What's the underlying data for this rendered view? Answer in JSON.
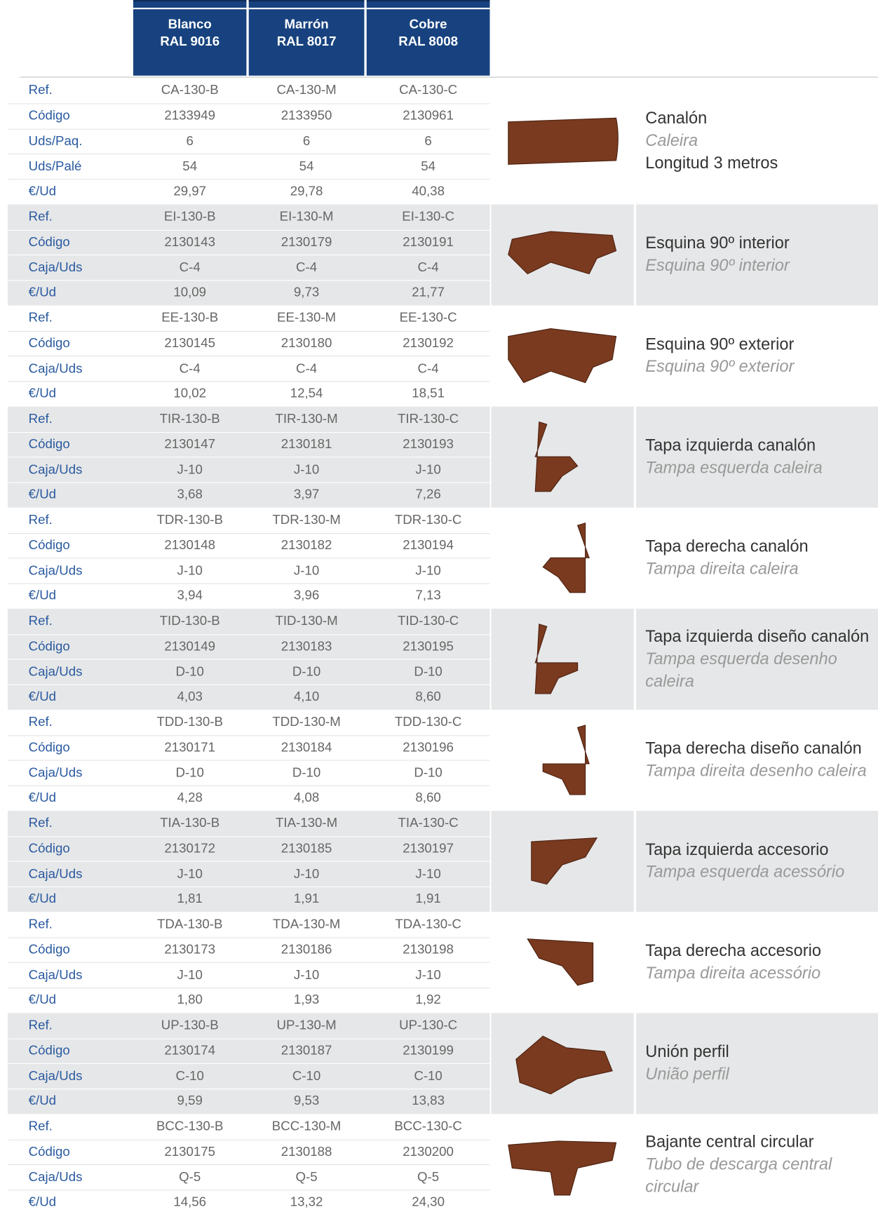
{
  "header": {
    "columns": [
      {
        "name": "Blanco",
        "ral": "RAL 9016"
      },
      {
        "name": "Marrón",
        "ral": "RAL 8017"
      },
      {
        "name": "Cobre",
        "ral": "RAL 8008"
      }
    ]
  },
  "groups": [
    {
      "title": "Canalón",
      "subtitle": "Caleira",
      "note": "Longitud 3 metros",
      "rows": [
        {
          "label": "Ref.",
          "values": [
            "CA-130-B",
            "CA-130-M",
            "CA-130-C"
          ]
        },
        {
          "label": "Código",
          "values": [
            "2133949",
            "2133950",
            "2130961"
          ]
        },
        {
          "label": "Uds/Paq.",
          "values": [
            "6",
            "6",
            "6"
          ]
        },
        {
          "label": "Uds/Palé",
          "values": [
            "54",
            "54",
            "54"
          ]
        },
        {
          "label": "€/Ud",
          "values": [
            "29,97",
            "29,78",
            "40,38"
          ]
        }
      ]
    },
    {
      "title": "Esquina 90º interior",
      "subtitle": "Esquina 90º interior",
      "rows": [
        {
          "label": "Ref.",
          "values": [
            "EI-130-B",
            "EI-130-M",
            "EI-130-C"
          ]
        },
        {
          "label": "Código",
          "values": [
            "2130143",
            "2130179",
            "2130191"
          ]
        },
        {
          "label": "Caja/Uds",
          "values": [
            "C-4",
            "C-4",
            "C-4"
          ]
        },
        {
          "label": "€/Ud",
          "values": [
            "10,09",
            "9,73",
            "21,77"
          ]
        }
      ]
    },
    {
      "title": "Esquina 90º exterior",
      "subtitle": "Esquina 90º exterior",
      "rows": [
        {
          "label": "Ref.",
          "values": [
            "EE-130-B",
            "EE-130-M",
            "EE-130-C"
          ]
        },
        {
          "label": "Código",
          "values": [
            "2130145",
            "2130180",
            "2130192"
          ]
        },
        {
          "label": "Caja/Uds",
          "values": [
            "C-4",
            "C-4",
            "C-4"
          ]
        },
        {
          "label": "€/Ud",
          "values": [
            "10,02",
            "12,54",
            "18,51"
          ]
        }
      ]
    },
    {
      "title": "Tapa izquierda canalón",
      "subtitle": "Tampa esquerda caleira",
      "rows": [
        {
          "label": "Ref.",
          "values": [
            "TIR-130-B",
            "TIR-130-M",
            "TIR-130-C"
          ]
        },
        {
          "label": "Código",
          "values": [
            "2130147",
            "2130181",
            "2130193"
          ]
        },
        {
          "label": "Caja/Uds",
          "values": [
            "J-10",
            "J-10",
            "J-10"
          ]
        },
        {
          "label": "€/Ud",
          "values": [
            "3,68",
            "3,97",
            "7,26"
          ]
        }
      ]
    },
    {
      "title": "Tapa derecha canalón",
      "subtitle": "Tampa direita caleira",
      "rows": [
        {
          "label": "Ref.",
          "values": [
            "TDR-130-B",
            "TDR-130-M",
            "TDR-130-C"
          ]
        },
        {
          "label": "Código",
          "values": [
            "2130148",
            "2130182",
            "2130194"
          ]
        },
        {
          "label": "Caja/Uds",
          "values": [
            "J-10",
            "J-10",
            "J-10"
          ]
        },
        {
          "label": "€/Ud",
          "values": [
            "3,94",
            "3,96",
            "7,13"
          ]
        }
      ]
    },
    {
      "title": "Tapa izquierda diseño canalón",
      "subtitle": "Tampa esquerda desenho caleira",
      "rows": [
        {
          "label": "Ref.",
          "values": [
            "TID-130-B",
            "TID-130-M",
            "TID-130-C"
          ]
        },
        {
          "label": "Código",
          "values": [
            "2130149",
            "2130183",
            "2130195"
          ]
        },
        {
          "label": "Caja/Uds",
          "values": [
            "D-10",
            "D-10",
            "D-10"
          ]
        },
        {
          "label": "€/Ud",
          "values": [
            "4,03",
            "4,10",
            "8,60"
          ]
        }
      ]
    },
    {
      "title": "Tapa derecha diseño canalón",
      "subtitle": "Tampa direita desenho caleira",
      "rows": [
        {
          "label": "Ref.",
          "values": [
            "TDD-130-B",
            "TDD-130-M",
            "TDD-130-C"
          ]
        },
        {
          "label": "Código",
          "values": [
            "2130171",
            "2130184",
            "2130196"
          ]
        },
        {
          "label": "Caja/Uds",
          "values": [
            "D-10",
            "D-10",
            "D-10"
          ]
        },
        {
          "label": "€/Ud",
          "values": [
            "4,28",
            "4,08",
            "8,60"
          ]
        }
      ]
    },
    {
      "title": "Tapa izquierda accesorio",
      "subtitle": "Tampa esquerda acessório",
      "rows": [
        {
          "label": "Ref.",
          "values": [
            "TIA-130-B",
            "TIA-130-M",
            "TIA-130-C"
          ]
        },
        {
          "label": "Código",
          "values": [
            "2130172",
            "2130185",
            "2130197"
          ]
        },
        {
          "label": "Caja/Uds",
          "values": [
            "J-10",
            "J-10",
            "J-10"
          ]
        },
        {
          "label": "€/Ud",
          "values": [
            "1,81",
            "1,91",
            "1,91"
          ]
        }
      ]
    },
    {
      "title": "Tapa derecha accesorio",
      "subtitle": "Tampa direita acessório",
      "rows": [
        {
          "label": "Ref.",
          "values": [
            "TDA-130-B",
            "TDA-130-M",
            "TDA-130-C"
          ]
        },
        {
          "label": "Código",
          "values": [
            "2130173",
            "2130186",
            "2130198"
          ]
        },
        {
          "label": "Caja/Uds",
          "values": [
            "J-10",
            "J-10",
            "J-10"
          ]
        },
        {
          "label": "€/Ud",
          "values": [
            "1,80",
            "1,93",
            "1,92"
          ]
        }
      ]
    },
    {
      "title": "Unión perfil",
      "subtitle": "União perfil",
      "rows": [
        {
          "label": "Ref.",
          "values": [
            "UP-130-B",
            "UP-130-M",
            "UP-130-C"
          ]
        },
        {
          "label": "Código",
          "values": [
            "2130174",
            "2130187",
            "2130199"
          ]
        },
        {
          "label": "Caja/Uds",
          "values": [
            "C-10",
            "C-10",
            "C-10"
          ]
        },
        {
          "label": "€/Ud",
          "values": [
            "9,59",
            "9,53",
            "13,83"
          ]
        }
      ]
    },
    {
      "title": "Bajante central circular",
      "subtitle": "Tubo de descarga central circular",
      "rows": [
        {
          "label": "Ref.",
          "values": [
            "BCC-130-B",
            "BCC-130-M",
            "BCC-130-C"
          ]
        },
        {
          "label": "Código",
          "values": [
            "2130175",
            "2130188",
            "2130200"
          ]
        },
        {
          "label": "Caja/Uds",
          "values": [
            "Q-5",
            "Q-5",
            "Q-5"
          ]
        },
        {
          "label": "€/Ud",
          "values": [
            "14,56",
            "13,32",
            "24,30"
          ]
        }
      ]
    }
  ]
}
